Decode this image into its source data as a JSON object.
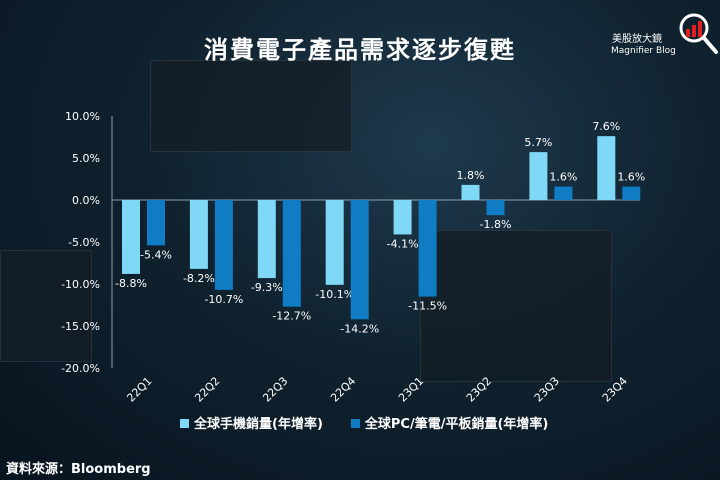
{
  "title": "消費電子產品需求逐步復甦",
  "logo": {
    "chinese": "美股放大鏡",
    "english": "Magnifier Blog"
  },
  "source": "資料來源：Bloomberg",
  "chart_data": {
    "type": "bar",
    "title": "消費電子產品需求逐步復甦",
    "categories": [
      "22Q1",
      "22Q2",
      "22Q3",
      "22Q4",
      "23Q1",
      "23Q2",
      "23Q3",
      "23Q4"
    ],
    "series": [
      {
        "name": "全球手機銷量(年增率)",
        "color": "#7fd8f5",
        "values": [
          -8.8,
          -8.2,
          -9.3,
          -10.1,
          -4.1,
          1.8,
          5.7,
          7.6
        ]
      },
      {
        "name": "全球PC/筆電/平板銷量(年增率)",
        "color": "#0f7cc4",
        "values": [
          -5.4,
          -10.7,
          -12.7,
          -14.2,
          -11.5,
          -1.8,
          1.6,
          1.6
        ]
      }
    ],
    "ylim": [
      -20,
      10
    ],
    "yticks": [
      "-20.0%",
      "-15.0%",
      "-10.0%",
      "-5.0%",
      "0.0%",
      "5.0%",
      "10.0%"
    ],
    "grid": false,
    "legend": "bottom"
  }
}
